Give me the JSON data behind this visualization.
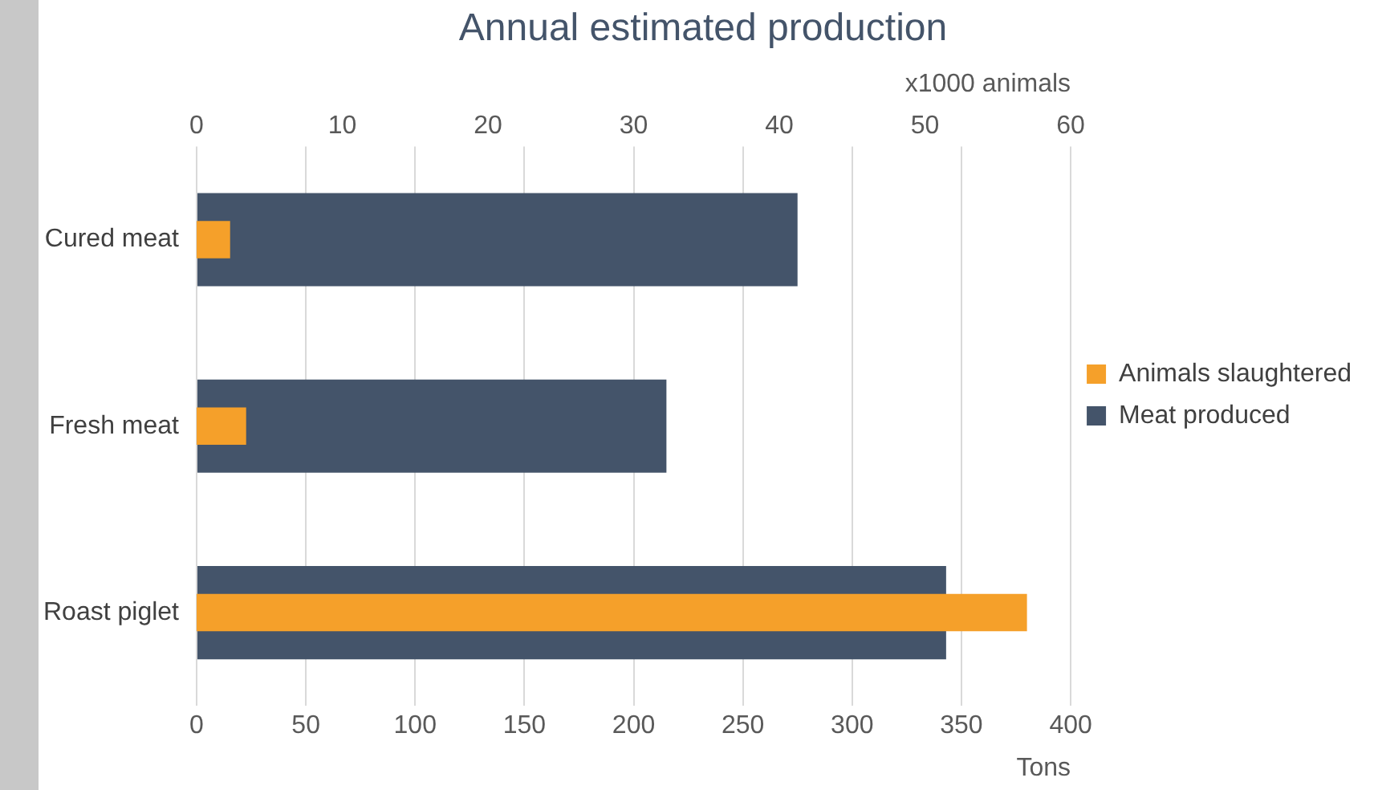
{
  "chart_data": {
    "type": "bar",
    "orientation": "horizontal",
    "title": "Annual estimated production",
    "xlabel": "Tons",
    "x2label": "x1000 animals",
    "categories": [
      "Cured meat",
      "Fresh meat",
      "Roast piglet"
    ],
    "series": [
      {
        "name": "Meat produced",
        "color": "#44546a",
        "values": [
          275,
          215,
          343
        ]
      },
      {
        "name": "Animals slaughtered",
        "color": "#f5a02a",
        "values": [
          2.3,
          3.4,
          57
        ],
        "axis": "x2"
      }
    ],
    "xlim": [
      0,
      400
    ],
    "xticks": [
      0,
      50,
      100,
      150,
      200,
      250,
      300,
      350,
      400
    ],
    "x2lim": [
      0,
      60
    ],
    "x2ticks": [
      0,
      10,
      20,
      30,
      40,
      50,
      60
    ],
    "grid": "x",
    "legend": "right"
  }
}
